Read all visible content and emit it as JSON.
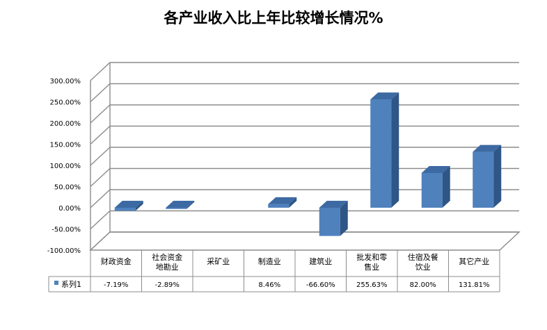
{
  "chart_data": {
    "type": "bar",
    "title": "各产业收入比上年比较增长情况%",
    "categories": [
      [
        "财政资金"
      ],
      [
        "社会资金",
        "地勘业"
      ],
      [
        "采矿业"
      ],
      [
        "制造业"
      ],
      [
        "建筑业"
      ],
      [
        "批发和零",
        "售业"
      ],
      [
        "住宿及餐",
        "饮业"
      ],
      [
        "其它产业"
      ]
    ],
    "series": [
      {
        "name": "系列1",
        "values": [
          -7.19,
          -2.89,
          null,
          8.46,
          -66.6,
          255.63,
          82.0,
          131.81
        ],
        "labels": [
          "-7.19%",
          "-2.89%",
          "",
          "8.46%",
          "-66.60%",
          "255.63%",
          "82.00%",
          "131.81%"
        ]
      }
    ],
    "ylim": [
      -100,
      300
    ],
    "yticks": [
      "-100.00%",
      "-50.00%",
      "0.00%",
      "50.00%",
      "100.00%",
      "150.00%",
      "200.00%",
      "250.00%",
      "300.00%"
    ],
    "grid": true,
    "legend": "data-table",
    "colors": {
      "bar_front": "#4f81bd",
      "bar_side": "#2e5686",
      "bar_top": "#3d6aa2"
    }
  }
}
